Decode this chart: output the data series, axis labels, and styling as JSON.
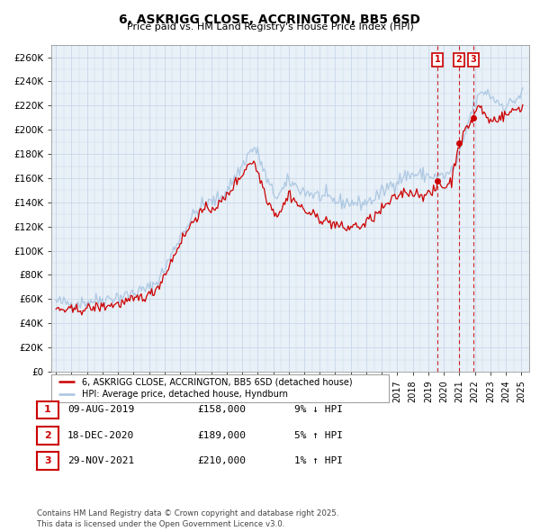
{
  "title": "6, ASKRIGG CLOSE, ACCRINGTON, BB5 6SD",
  "subtitle": "Price paid vs. HM Land Registry's House Price Index (HPI)",
  "legend_line1": "6, ASKRIGG CLOSE, ACCRINGTON, BB5 6SD (detached house)",
  "legend_line2": "HPI: Average price, detached house, Hyndburn",
  "transactions": [
    {
      "num": 1,
      "date": "09-AUG-2019",
      "date_x": 2019.6,
      "price": 158000,
      "pct": "9% ↓ HPI"
    },
    {
      "num": 2,
      "date": "18-DEC-2020",
      "date_x": 2020.96,
      "price": 189000,
      "pct": "5% ↑ HPI"
    },
    {
      "num": 3,
      "date": "29-NOV-2021",
      "date_x": 2021.91,
      "price": 210000,
      "pct": "1% ↑ HPI"
    }
  ],
  "footer": "Contains HM Land Registry data © Crown copyright and database right 2025.\nThis data is licensed under the Open Government Licence v3.0.",
  "hpi_color": "#a8c4e0",
  "price_color": "#cc0000",
  "marker_color": "#cc0000",
  "vline_color": "#cc0000",
  "annotation_box_color": "#cc0000",
  "grid_color": "#c8d8e8",
  "bg_color": "#e8f0f8",
  "ylim": [
    0,
    270000
  ],
  "yticks": [
    0,
    20000,
    40000,
    60000,
    80000,
    100000,
    120000,
    140000,
    160000,
    180000,
    200000,
    220000,
    240000,
    260000
  ],
  "xlim_start": 1994.7,
  "xlim_end": 2025.5
}
